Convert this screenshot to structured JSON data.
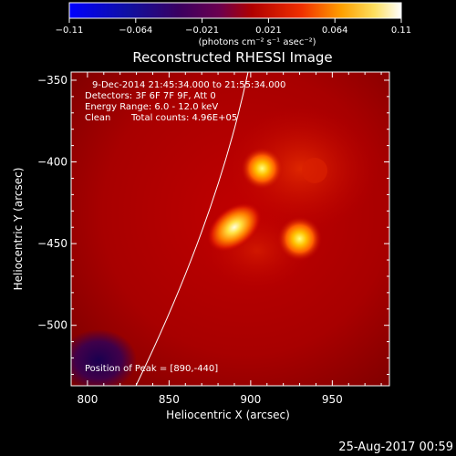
{
  "colorbar": {
    "ticks": [
      "−0.11",
      "−0.064",
      "−0.021",
      "0.021",
      "0.064",
      "0.11"
    ],
    "unit_label": "(photons cm⁻² s⁻¹ asec⁻²)",
    "range": [
      -0.11,
      0.11
    ]
  },
  "chart_data": {
    "type": "heatmap",
    "title": "Reconstructed RHESSI Image",
    "xlabel": "Heliocentric X (arcsec)",
    "ylabel": "Heliocentric Y (arcsec)",
    "xlim": [
      790,
      985
    ],
    "ylim": [
      -537,
      -345
    ],
    "x_ticks": [
      800,
      850,
      900,
      950
    ],
    "y_ticks": [
      -350,
      -400,
      -450,
      -500
    ],
    "y_tick_labels": [
      "−350",
      "−400",
      "−450",
      "−500"
    ],
    "sources": [
      {
        "x": 907,
        "y": -404,
        "intensity": 0.075
      },
      {
        "x": 890,
        "y": -440,
        "intensity": 0.11
      },
      {
        "x": 930,
        "y": -447,
        "intensity": 0.085
      }
    ],
    "annotations": {
      "time_range": "9-Dec-2014 21:45:34.000 to 21:55:34.000",
      "detectors": "Detectors: 3F 6F 7F 9F, Att 0",
      "energy": "Energy Range: 6.0 - 12.0 keV",
      "clean": "Clean",
      "counts": "Total counts: 4.96E+05",
      "peak": "Position of Peak = [890,-440]"
    }
  },
  "footer": {
    "timestamp": "25-Aug-2017 00:59"
  }
}
